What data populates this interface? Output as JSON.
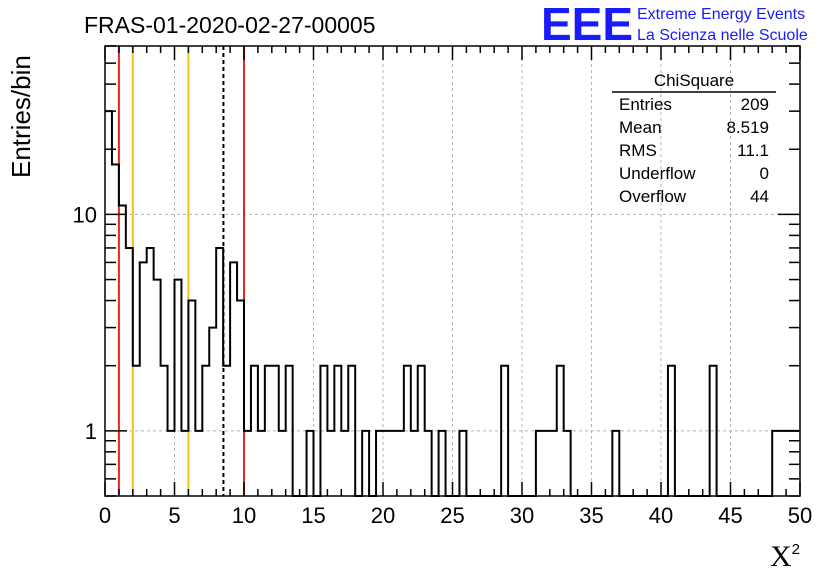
{
  "chart_data": {
    "type": "bar",
    "title": "FRAS-01-2020-02-27-00005",
    "xlabel": "X",
    "xlabel_sup": "2",
    "ylabel": "Entries/bin",
    "xlim": [
      0,
      50
    ],
    "ylim": [
      0.5,
      60
    ],
    "yscale": "log",
    "grid": true,
    "xticks": [
      "0",
      "5",
      "10",
      "15",
      "20",
      "25",
      "30",
      "35",
      "40",
      "45",
      "50"
    ],
    "xtick_values": [
      0,
      5,
      10,
      15,
      20,
      25,
      30,
      35,
      40,
      45,
      50
    ],
    "yticks": [
      "1",
      "10"
    ],
    "ytick_values": [
      1,
      10
    ],
    "bin_width": 0.5,
    "bin_start": 0,
    "values": [
      30,
      17,
      11,
      7,
      2,
      6,
      7,
      5,
      2,
      1,
      5,
      1,
      4,
      1,
      2,
      3,
      7,
      2,
      6,
      4,
      1,
      2,
      1,
      2,
      2,
      1,
      2,
      0,
      0,
      1,
      0,
      2,
      1,
      2,
      1,
      2,
      0,
      1,
      0,
      1,
      1,
      1,
      1,
      2,
      1,
      2,
      1,
      0,
      1,
      0,
      0,
      1,
      0,
      0,
      0,
      0,
      0,
      2,
      0,
      0,
      0,
      0,
      1,
      1,
      1,
      2,
      1,
      0,
      0,
      0,
      0,
      0,
      0,
      1,
      0,
      0,
      0,
      0,
      0,
      0,
      0,
      2,
      0,
      0,
      0,
      0,
      0,
      2,
      0,
      0,
      0,
      0,
      0,
      0,
      0,
      0,
      1,
      1,
      1,
      1
    ],
    "vertical_lines": [
      {
        "x": 1,
        "color": "#e8241f",
        "style": "solid"
      },
      {
        "x": 2,
        "color": "#f2c21a",
        "style": "solid"
      },
      {
        "x": 6,
        "color": "#f2c21a",
        "style": "solid"
      },
      {
        "x": 8.519,
        "color": "#000000",
        "style": "dashed"
      },
      {
        "x": 10,
        "color": "#e8241f",
        "style": "solid"
      }
    ],
    "stats_box": {
      "title": "ChiSquare",
      "rows": [
        {
          "label": "Entries",
          "value": "209"
        },
        {
          "label": "Mean",
          "value": "8.519"
        },
        {
          "label": "RMS",
          "value": "11.1"
        },
        {
          "label": "Underflow",
          "value": "0"
        },
        {
          "label": "Overflow",
          "value": "44"
        }
      ],
      "placement": "top-right"
    }
  },
  "logo": {
    "text": "EEE",
    "line1": "Extreme Energy Events",
    "line2": "La Scienza nelle Scuole",
    "color": "#1a1aff"
  }
}
